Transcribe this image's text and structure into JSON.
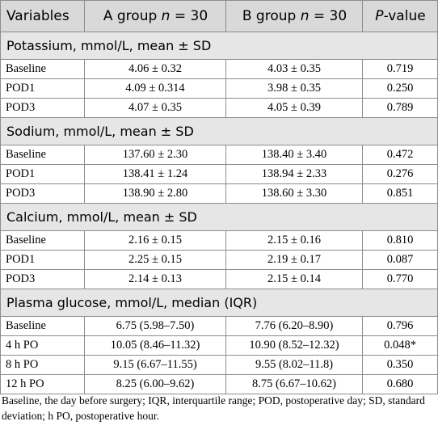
{
  "header": {
    "variables": "Variables",
    "group_a": "A group n = 30",
    "group_a_pre": "A group ",
    "group_a_n": "n",
    "group_a_post": " = 30",
    "group_b_pre": "B group ",
    "group_b_n": "n",
    "group_b_post": " = 30",
    "pvalue_p": "P",
    "pvalue_post": "-value"
  },
  "sections": [
    {
      "title": "Potassium, mmol/L, mean ± SD",
      "rows": [
        {
          "label": "Baseline",
          "a": "4.06 ± 0.32",
          "b": "4.03 ± 0.35",
          "p": "0.719"
        },
        {
          "label": "POD1",
          "a": "4.09 ± 0.314",
          "b": "3.98 ± 0.35",
          "p": "0.250"
        },
        {
          "label": "POD3",
          "a": "4.07 ± 0.35",
          "b": "4.05 ± 0.39",
          "p": "0.789"
        }
      ]
    },
    {
      "title": "Sodium, mmol/L, mean ± SD",
      "rows": [
        {
          "label": "Baseline",
          "a": "137.60 ± 2.30",
          "b": "138.40 ± 3.40",
          "p": "0.472"
        },
        {
          "label": "POD1",
          "a": "138.41 ± 1.24",
          "b": "138.94 ± 2.33",
          "p": "0.276"
        },
        {
          "label": "POD3",
          "a": "138.90 ± 2.80",
          "b": "138.60 ± 3.30",
          "p": "0.851"
        }
      ]
    },
    {
      "title": "Calcium, mmol/L, mean ± SD",
      "rows": [
        {
          "label": "Baseline",
          "a": "2.16 ± 0.15",
          "b": "2.15 ± 0.16",
          "p": "0.810"
        },
        {
          "label": "POD1",
          "a": "2.25 ± 0.15",
          "b": "2.19 ± 0.17",
          "p": "0.087"
        },
        {
          "label": "POD3",
          "a": "2.14 ± 0.13",
          "b": "2.15 ± 0.14",
          "p": "0.770"
        }
      ]
    },
    {
      "title": "Plasma glucose, mmol/L, median (IQR)",
      "rows": [
        {
          "label": "Baseline",
          "a": "6.75 (5.98–7.50)",
          "b": "7.76 (6.20–8.90)",
          "p": "0.796"
        },
        {
          "label": "4 h PO",
          "a": "10.05 (8.46–11.32)",
          "b": "10.90 (8.52–12.32)",
          "p": "0.048*"
        },
        {
          "label": "8 h PO",
          "a": "9.15 (6.67–11.55)",
          "b": "9.55 (8.02–11.8)",
          "p": "0.350"
        },
        {
          "label": "12 h PO",
          "a": "8.25 (6.00–9.62)",
          "b": "8.75 (6.67–10.62)",
          "p": "0.680"
        }
      ]
    }
  ],
  "footnote": "Baseline, the day before surgery; IQR, interquartile range; POD, postoperative day; SD, standard deviation; h PO, postoperative hour."
}
